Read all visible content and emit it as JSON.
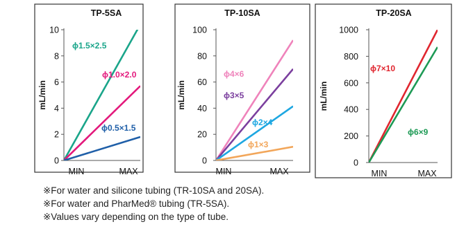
{
  "chart_data": [
    {
      "type": "line",
      "title": "TP-5SA",
      "ylabel": "mL/min",
      "x": [
        "MIN",
        "MAX"
      ],
      "ylim": [
        0,
        10
      ],
      "yticks": [
        0,
        2,
        4,
        6,
        8,
        10
      ],
      "grid": false,
      "series": [
        {
          "name": "ϕ1.5×2.5",
          "values": [
            0,
            10.4
          ],
          "color": "#1aa58a"
        },
        {
          "name": "ϕ1.0×2.0",
          "values": [
            0,
            5.7
          ],
          "color": "#e3197c"
        },
        {
          "name": "ϕ0.5×1.5",
          "values": [
            0,
            1.8
          ],
          "color": "#1f5fa8"
        }
      ]
    },
    {
      "type": "line",
      "title": "TP-10SA",
      "ylabel": "mL/min",
      "x": [
        "MIN",
        "MAX"
      ],
      "ylim": [
        0,
        100
      ],
      "yticks": [
        0,
        20,
        40,
        60,
        80,
        100
      ],
      "grid": false,
      "series": [
        {
          "name": "ϕ4×6",
          "values": [
            0,
            92
          ],
          "color": "#ef83bb"
        },
        {
          "name": "ϕ3×5",
          "values": [
            0,
            70
          ],
          "color": "#7b3f9e"
        },
        {
          "name": "ϕ2×4",
          "values": [
            0,
            41.5
          ],
          "color": "#1ea7e1"
        },
        {
          "name": "ϕ1×3",
          "values": [
            0,
            10.5
          ],
          "color": "#f2a65a"
        }
      ]
    },
    {
      "type": "line",
      "title": "TP-20SA",
      "ylabel": "mL/min",
      "x": [
        "MIN",
        "MAX"
      ],
      "ylim": [
        0,
        1000
      ],
      "yticks": [
        0,
        200,
        400,
        600,
        800,
        1000
      ],
      "grid": false,
      "series": [
        {
          "name": "ϕ7×10",
          "values": [
            0,
            1000
          ],
          "color": "#e0262f"
        },
        {
          "name": "ϕ6×9",
          "values": [
            0,
            870
          ],
          "color": "#1d9a55"
        }
      ]
    }
  ],
  "notes": [
    "※For water and silicone tubing (TR-10SA and 20SA).",
    "※For water and PharMed® tubing (TR-5SA).",
    "※Values vary depending on the type of tube."
  ]
}
